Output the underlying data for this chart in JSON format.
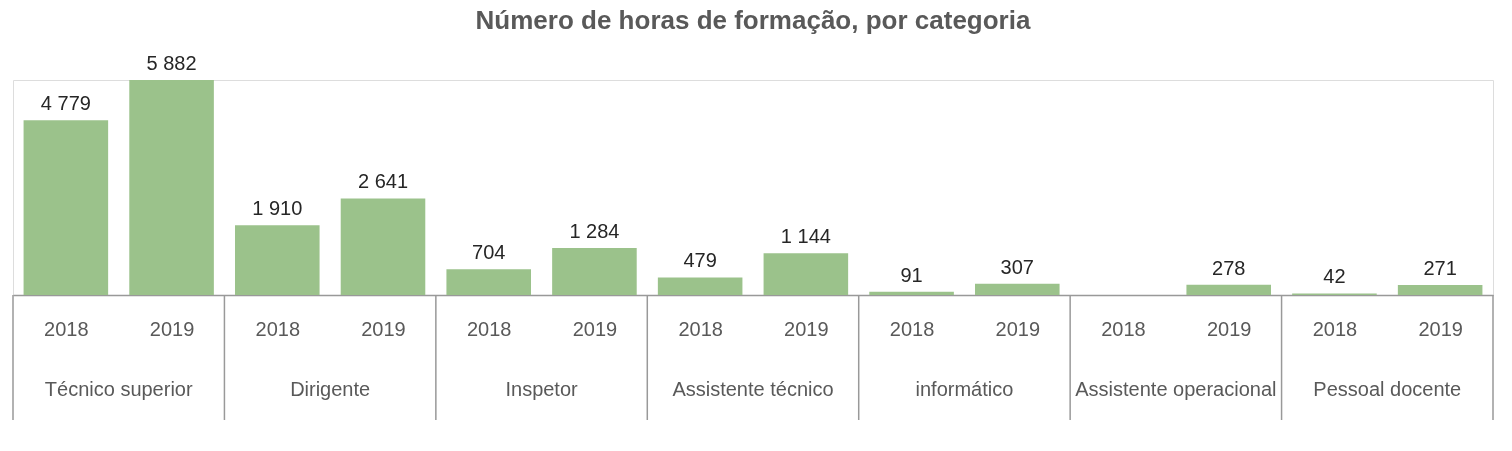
{
  "chart_data": {
    "type": "bar",
    "title": "Número de horas de formação, por categoria",
    "categories": [
      "2018",
      "2019",
      "2018",
      "2019",
      "2018",
      "2019",
      "2018",
      "2019",
      "2018",
      "2019",
      "2018",
      "2019",
      "2018",
      "2019"
    ],
    "values": [
      4779,
      5882,
      1910,
      2641,
      704,
      1284,
      479,
      1144,
      91,
      307,
      null,
      278,
      42,
      271
    ],
    "value_labels": [
      "4 779",
      "5 882",
      "1 910",
      "2 641",
      "704",
      "1 284",
      "479",
      "1 144",
      "91",
      "307",
      null,
      "278",
      "42",
      "271"
    ],
    "color": "#9bc28b",
    "annotations": [
      "Técnico superior",
      "Dirigente",
      "Inspetor",
      "Assistente técnico",
      "informático",
      "Assistente operacional",
      "Pessoal docente"
    ],
    "grid": false
  }
}
